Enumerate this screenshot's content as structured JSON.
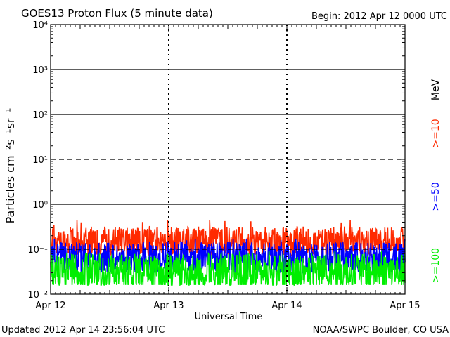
{
  "chart_data": {
    "type": "line",
    "title": "GOES13 Proton Flux (5 minute data)",
    "begin_label": "Begin: 2012 Apr 12 0000 UTC",
    "updated_label": "Updated 2012 Apr 14 23:56:04 UTC",
    "credit_label": "NOAA/SWPC Boulder, CO USA",
    "xlabel": "Universal Time",
    "ylabel": "Particles cm⁻²s⁻¹sr⁻¹",
    "x_tick_labels": [
      "Apr 12",
      "Apr 13",
      "Apr 14",
      "Apr 15"
    ],
    "y_tick_labels": [
      "10⁴",
      "10³",
      "10²",
      "10¹",
      "10⁰",
      "10⁻¹",
      "10⁻²"
    ],
    "yscale": "log",
    "ylim": [
      0.01,
      10000
    ],
    "xlim_days": [
      0,
      3
    ],
    "unit_label": "MeV",
    "threshold_lines": [
      {
        "value": 1000,
        "style": "solid"
      },
      {
        "value": 100,
        "style": "solid"
      },
      {
        "value": 10,
        "style": "dashed"
      },
      {
        "value": 1,
        "style": "solid"
      },
      {
        "value": 0.1,
        "style": "dashed"
      }
    ],
    "series": [
      {
        "name": ">=10",
        "color": "#ff2a00",
        "base": 0.15,
        "spread": 0.33,
        "range": [
          0.07,
          0.45
        ]
      },
      {
        "name": ">=50",
        "color": "#0000ff",
        "base": 0.065,
        "spread": 0.35,
        "range": [
          0.03,
          0.17
        ]
      },
      {
        "name": ">=100",
        "color": "#00ee00",
        "base": 0.032,
        "spread": 0.4,
        "range": [
          0.016,
          0.09
        ]
      }
    ],
    "grid": false
  }
}
